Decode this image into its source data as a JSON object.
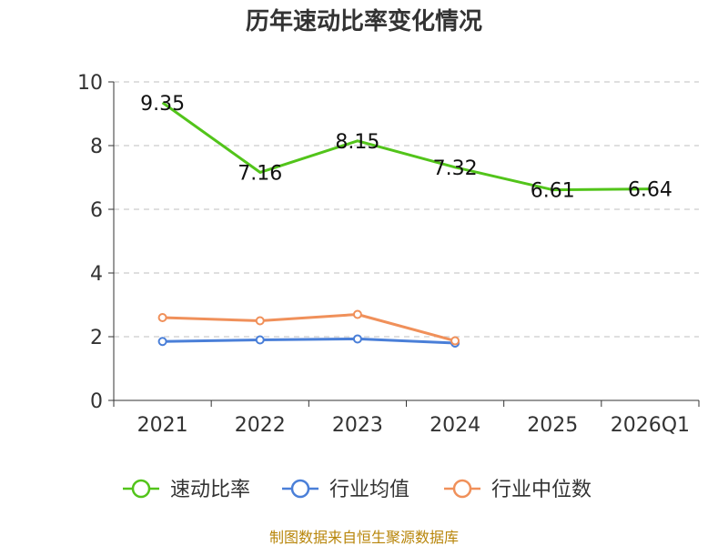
{
  "chart_data": {
    "type": "line",
    "title": "历年速动比率变化情况",
    "categories": [
      "2021",
      "2022",
      "2023",
      "2024",
      "2025",
      "2026Q1"
    ],
    "ylim": [
      0,
      10
    ],
    "yticks": [
      0,
      2,
      4,
      6,
      8,
      10
    ],
    "grid": true,
    "legend_position": "bottom",
    "series": [
      {
        "name": "速动比率",
        "color": "#52c41a",
        "values": [
          9.35,
          7.16,
          8.15,
          7.32,
          6.61,
          6.64
        ],
        "show_labels": true
      },
      {
        "name": "行业均值",
        "color": "#4a7fd8",
        "values": [
          1.85,
          1.9,
          1.93,
          1.8,
          null,
          null
        ],
        "show_labels": false
      },
      {
        "name": "行业中位数",
        "color": "#f0905a",
        "values": [
          2.6,
          2.5,
          2.7,
          1.87,
          null,
          null
        ],
        "show_labels": false
      }
    ],
    "source": "制图数据来自恒生聚源数据库"
  }
}
